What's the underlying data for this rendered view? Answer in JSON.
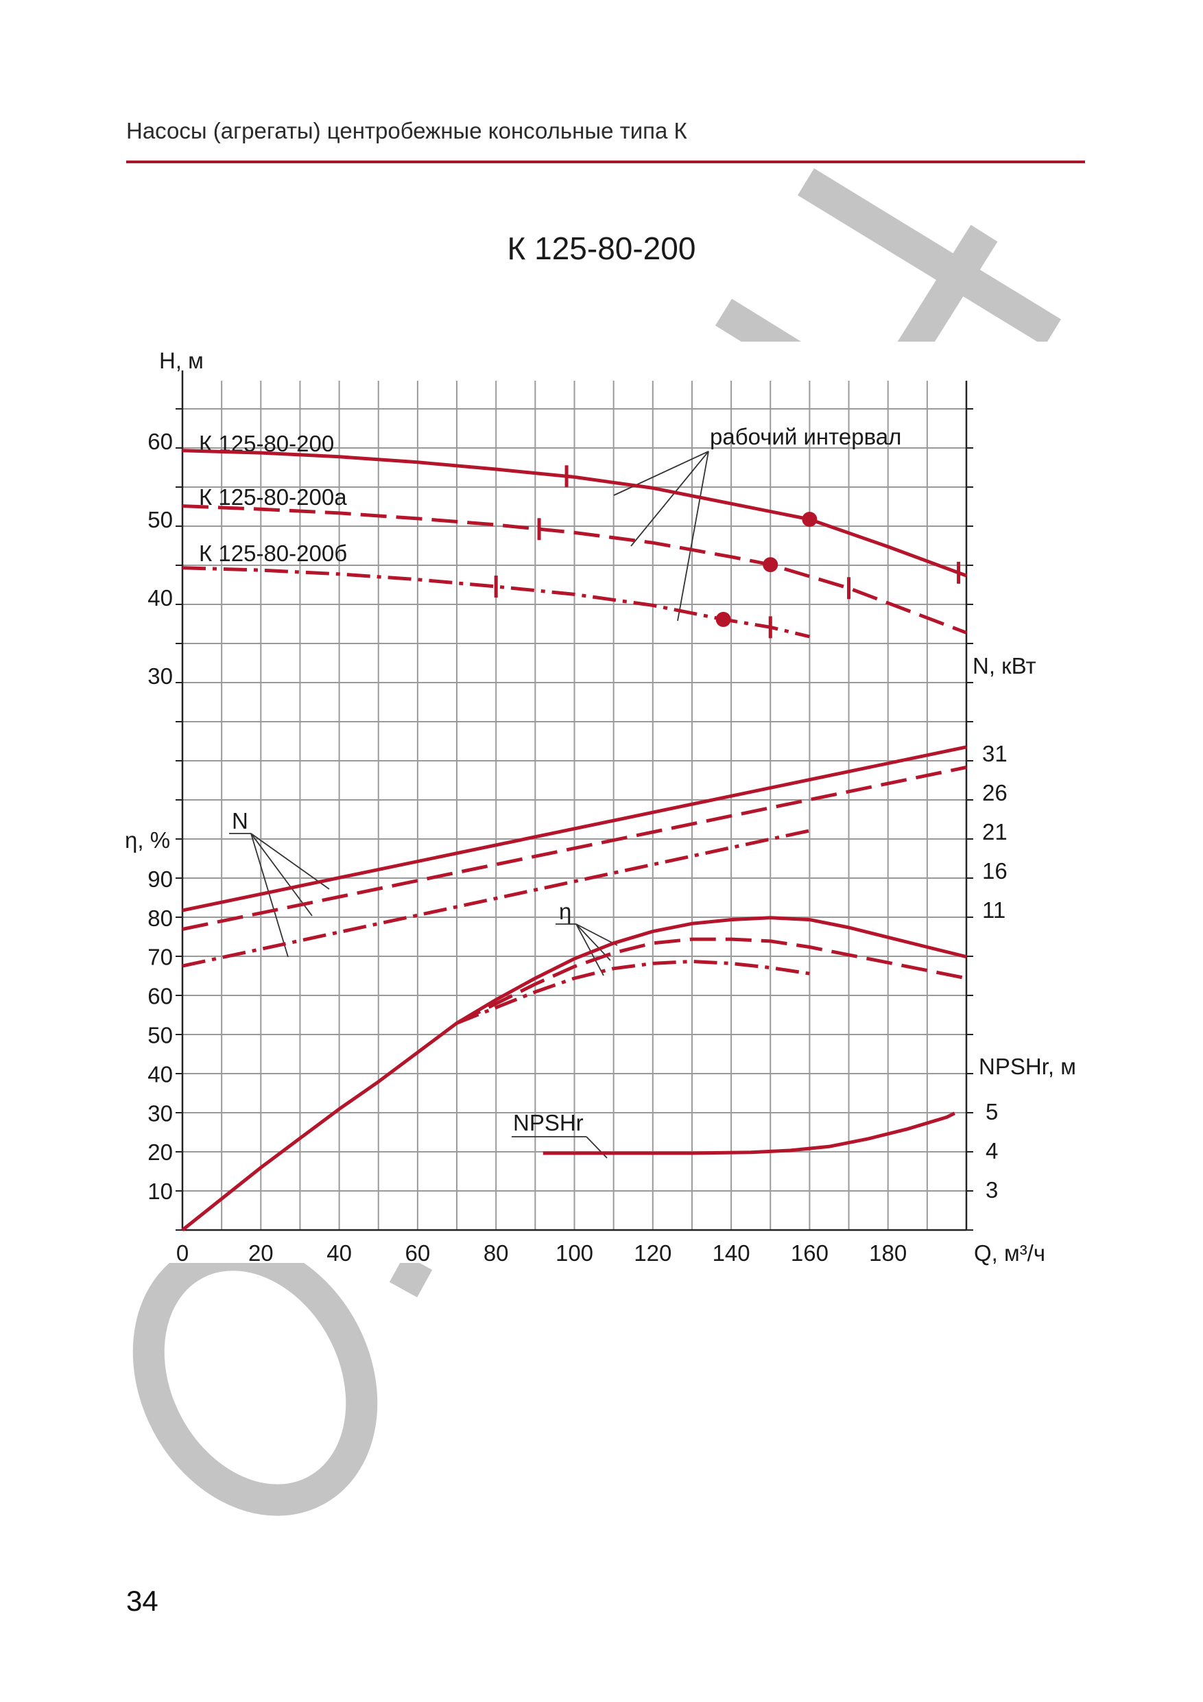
{
  "page": {
    "header_title": "Насосы (агрегаты) центробежные консольные типа К",
    "page_number": "34",
    "accent_color": "#a8182a",
    "curve_color": "#b5152b"
  },
  "chart_data": {
    "type": "line",
    "title": "К 125-80-200",
    "xlabel": "Q, м³/ч",
    "xlim": [
      0,
      200
    ],
    "x_ticks": [
      0,
      20,
      40,
      60,
      80,
      100,
      120,
      140,
      160,
      180
    ],
    "grid": true,
    "axes": {
      "H": {
        "label": "Н, м",
        "side": "left",
        "ticks": [
          30,
          40,
          50,
          60
        ]
      },
      "eta": {
        "label": "η, %",
        "side": "left",
        "ticks": [
          10,
          20,
          30,
          40,
          50,
          60,
          70,
          80,
          90
        ]
      },
      "N": {
        "label": "N, кВт",
        "side": "right",
        "ticks": [
          11,
          16,
          21,
          26,
          31
        ]
      },
      "NPSH": {
        "label": "NPSHr, м",
        "side": "right",
        "ticks": [
          3,
          4,
          5
        ]
      }
    },
    "annotations": {
      "working_interval": "рабочий интервал",
      "N_label": "N",
      "eta_label": "η",
      "npsh_label": "NPSHr"
    },
    "series": [
      {
        "name": "К 125-80-200",
        "axis": "H",
        "style": "solid",
        "points": [
          [
            0,
            58.8
          ],
          [
            20,
            58.5
          ],
          [
            40,
            58
          ],
          [
            60,
            57.3
          ],
          [
            80,
            56.4
          ],
          [
            100,
            55.4
          ],
          [
            120,
            54
          ],
          [
            140,
            52
          ],
          [
            160,
            50
          ],
          [
            180,
            46.5
          ],
          [
            200,
            42.8
          ]
        ],
        "interval_marks": [
          98,
          198
        ],
        "nominal_point": [
          160,
          50
        ]
      },
      {
        "name": "К 125-80-200а",
        "axis": "H",
        "style": "dashed",
        "points": [
          [
            0,
            51.7
          ],
          [
            20,
            51.3
          ],
          [
            40,
            50.8
          ],
          [
            60,
            50.1
          ],
          [
            80,
            49.3
          ],
          [
            100,
            48.3
          ],
          [
            120,
            47
          ],
          [
            140,
            45.2
          ],
          [
            150,
            44.2
          ],
          [
            170,
            41.2
          ],
          [
            200,
            35.5
          ]
        ],
        "interval_marks": [
          91,
          170
        ],
        "nominal_point": [
          150,
          44.2
        ]
      },
      {
        "name": "К 125-80-200б",
        "axis": "H",
        "style": "dashdot",
        "points": [
          [
            0,
            43.8
          ],
          [
            20,
            43.5
          ],
          [
            40,
            43
          ],
          [
            60,
            42.3
          ],
          [
            80,
            41.4
          ],
          [
            100,
            40.4
          ],
          [
            120,
            39
          ],
          [
            138,
            37.2
          ],
          [
            150,
            36.2
          ],
          [
            160,
            35
          ]
        ],
        "interval_marks": [
          80,
          150
        ],
        "nominal_point": [
          138,
          37.2
        ]
      },
      {
        "name": "",
        "axis": "N",
        "style": "solid",
        "points": [
          [
            0,
            10.9
          ],
          [
            200,
            31.8
          ]
        ]
      },
      {
        "name": "",
        "axis": "N",
        "style": "dashed",
        "points": [
          [
            0,
            8.5
          ],
          [
            200,
            29.2
          ]
        ]
      },
      {
        "name": "",
        "axis": "N",
        "style": "dashdot",
        "points": [
          [
            0,
            3.8
          ],
          [
            160,
            21.1
          ]
        ]
      },
      {
        "name": "",
        "axis": "eta",
        "style": "solid",
        "points": [
          [
            0,
            0
          ],
          [
            10,
            8
          ],
          [
            20,
            16
          ],
          [
            30,
            23.5
          ],
          [
            40,
            31
          ],
          [
            50,
            38
          ],
          [
            60,
            45.5
          ],
          [
            70,
            53
          ],
          [
            80,
            59
          ],
          [
            90,
            64.5
          ],
          [
            100,
            69.5
          ],
          [
            110,
            73.5
          ],
          [
            120,
            76.5
          ],
          [
            130,
            78.5
          ],
          [
            140,
            79.5
          ],
          [
            150,
            80
          ],
          [
            160,
            79.5
          ],
          [
            170,
            77.5
          ],
          [
            180,
            75
          ],
          [
            190,
            72.5
          ],
          [
            200,
            70
          ]
        ]
      },
      {
        "name": "",
        "axis": "eta",
        "style": "dashed",
        "points": [
          [
            70,
            53
          ],
          [
            80,
            58
          ],
          [
            90,
            63
          ],
          [
            100,
            67.5
          ],
          [
            110,
            71
          ],
          [
            120,
            73.5
          ],
          [
            130,
            74.5
          ],
          [
            140,
            74.5
          ],
          [
            150,
            74
          ],
          [
            160,
            72.5
          ],
          [
            170,
            70.5
          ],
          [
            180,
            68.5
          ],
          [
            190,
            66.5
          ],
          [
            200,
            64.5
          ]
        ]
      },
      {
        "name": "",
        "axis": "eta",
        "style": "dashdot",
        "points": [
          [
            70,
            53
          ],
          [
            80,
            57
          ],
          [
            90,
            61
          ],
          [
            100,
            64.5
          ],
          [
            110,
            67
          ],
          [
            120,
            68.3
          ],
          [
            130,
            68.8
          ],
          [
            140,
            68.3
          ],
          [
            150,
            67.2
          ],
          [
            160,
            65.7
          ]
        ]
      },
      {
        "name": "",
        "axis": "NPSH",
        "style": "solid",
        "points": [
          [
            92,
            3.93
          ],
          [
            110,
            3.93
          ],
          [
            130,
            3.93
          ],
          [
            145,
            3.95
          ],
          [
            155,
            4.0
          ],
          [
            165,
            4.1
          ],
          [
            175,
            4.3
          ],
          [
            185,
            4.55
          ],
          [
            195,
            4.85
          ],
          [
            197,
            4.95
          ]
        ]
      }
    ]
  }
}
